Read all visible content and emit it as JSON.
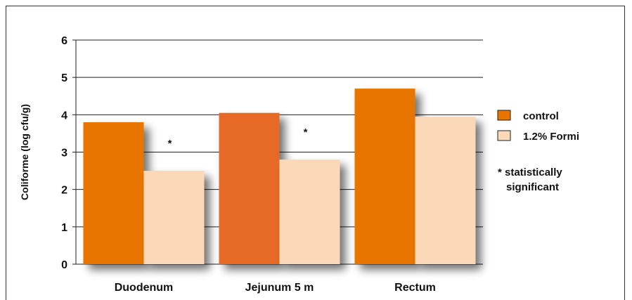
{
  "chart_data": {
    "type": "bar",
    "categories": [
      "Duodenum",
      "Jejunum 5 m",
      "Rectum"
    ],
    "series": [
      {
        "name": "control",
        "values": [
          3.8,
          4.05,
          4.7
        ],
        "color": "#E87400"
      },
      {
        "name": "1.2% Formi",
        "values": [
          2.5,
          2.8,
          3.95
        ],
        "color": "#FAD8B8"
      }
    ],
    "highlight_colors": [
      "#E87400",
      "#E66A26",
      "#E87400"
    ],
    "ylabel": "Coliforme (log cfu/g)",
    "xlabel": "",
    "title": "",
    "ylim": [
      0,
      6
    ],
    "yticks": [
      0,
      1,
      2,
      3,
      4,
      5,
      6
    ],
    "grid": true,
    "legend_position": "right",
    "annotations": [
      {
        "category": "Duodenum",
        "series": "1.2% Formi",
        "text": "*"
      },
      {
        "category": "Jejunum 5 m",
        "series": "1.2% Formi",
        "text": "*"
      }
    ],
    "note": [
      "* statistically",
      "significant"
    ]
  }
}
